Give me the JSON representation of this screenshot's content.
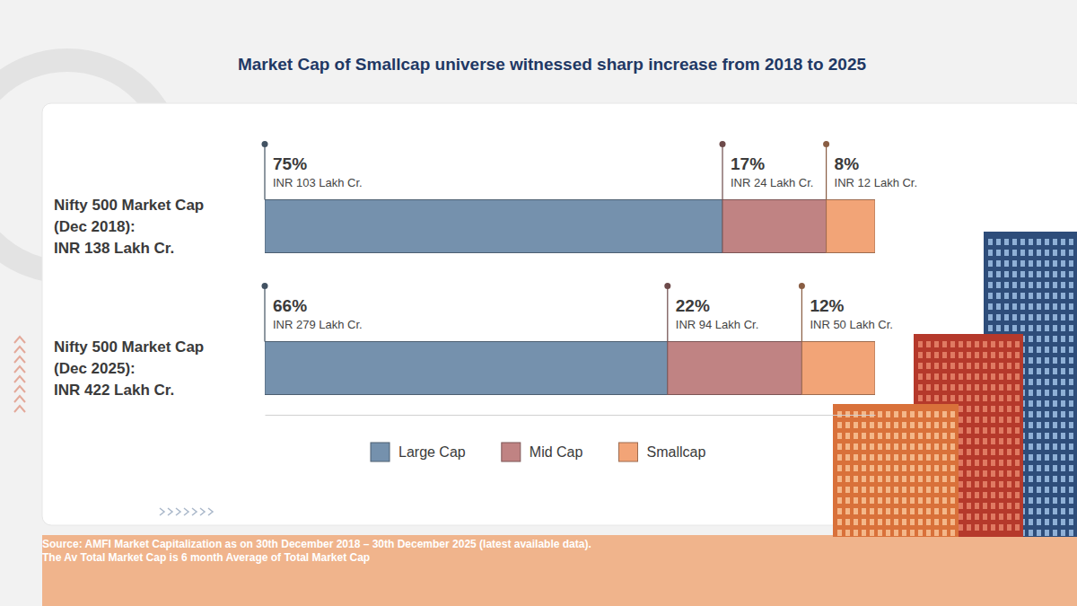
{
  "chart_data": {
    "type": "bar",
    "title": "Market Cap of Smallcap universe witnessed sharp increase from 2018 to 2025",
    "orientation": "horizontal",
    "stacked": true,
    "data_labels": true,
    "legend": "bottom",
    "tick_labels": false,
    "grid": false,
    "categories": [
      "Nifty 500 Market Cap\n(Dec 2018):\nINR 138 Lakh Cr.",
      "Nifty 500 Market Cap\n(Dec 2025):\nINR 422 Lakh Cr."
    ],
    "xlim": [
      0,
      100
    ],
    "xticks": [],
    "series": [
      {
        "name": "Large Cap",
        "color": "#7591ad",
        "values": [
          75,
          66
        ],
        "value_labels": [
          "75%",
          "66%"
        ],
        "amount_labels": [
          "INR 103 Lakh Cr.",
          "INR 279 Lakh Cr."
        ]
      },
      {
        "name": "Mid Cap",
        "color": "#c08383",
        "values": [
          17,
          22
        ],
        "value_labels": [
          "17%",
          "22%"
        ],
        "amount_labels": [
          "INR 24 Lakh Cr.",
          "INR 94 Lakh Cr."
        ]
      },
      {
        "name": "Smallcap",
        "color": "#f2a477",
        "values": [
          8,
          12
        ],
        "value_labels": [
          "8%",
          "12%"
        ],
        "amount_labels": [
          "INR 12 Lakh Cr.",
          "INR 50 Lakh Cr."
        ]
      }
    ],
    "footnotes": [
      "Source: AMFI Market Capitalization as on 30th December 2018 – 30th December 2025 (latest available data).",
      "The Av Total Market Cap is 6 month Average of Total Market Cap"
    ]
  }
}
